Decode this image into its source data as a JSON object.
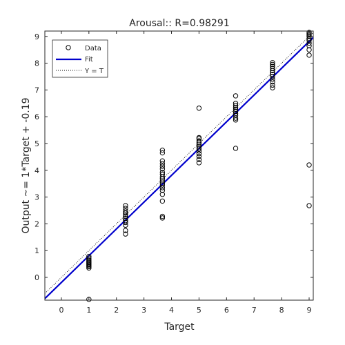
{
  "chart_data": {
    "type": "scatter",
    "title": "Arousal:: R=0.98291",
    "xlabel": "Target",
    "ylabel": "Output ~= 1*Target + -0.19",
    "xlim": [
      -0.6,
      9.15
    ],
    "ylim": [
      -0.85,
      9.2
    ],
    "xticks": [
      0,
      1,
      2,
      3,
      4,
      5,
      6,
      7,
      8,
      9
    ],
    "yticks": [
      0,
      1,
      2,
      3,
      4,
      5,
      6,
      7,
      8,
      9
    ],
    "grid": false,
    "legend_position": "top-left",
    "series": [
      {
        "name": "Data",
        "marker": "circle",
        "color": "#000000",
        "points": [
          [
            1,
            0.35
          ],
          [
            1,
            0.4
          ],
          [
            1,
            0.44
          ],
          [
            1,
            0.48
          ],
          [
            1,
            0.52
          ],
          [
            1,
            0.56
          ],
          [
            1,
            0.6
          ],
          [
            1,
            0.65
          ],
          [
            1,
            0.72
          ],
          [
            1,
            0.78
          ],
          [
            1,
            -0.82
          ],
          [
            2.33,
            1.62
          ],
          [
            2.33,
            1.75
          ],
          [
            2.33,
            1.95
          ],
          [
            2.33,
            2.05
          ],
          [
            2.33,
            2.12
          ],
          [
            2.33,
            2.2
          ],
          [
            2.33,
            2.28
          ],
          [
            2.33,
            2.33
          ],
          [
            2.33,
            2.4
          ],
          [
            2.33,
            2.48
          ],
          [
            2.33,
            2.58
          ],
          [
            2.33,
            2.68
          ],
          [
            3.67,
            2.22
          ],
          [
            3.67,
            2.28
          ],
          [
            3.67,
            2.85
          ],
          [
            3.67,
            3.1
          ],
          [
            3.67,
            3.25
          ],
          [
            3.67,
            3.35
          ],
          [
            3.67,
            3.45
          ],
          [
            3.67,
            3.52
          ],
          [
            3.67,
            3.6
          ],
          [
            3.67,
            3.68
          ],
          [
            3.67,
            3.75
          ],
          [
            3.67,
            3.85
          ],
          [
            3.67,
            3.92
          ],
          [
            3.67,
            4.05
          ],
          [
            3.67,
            4.15
          ],
          [
            3.67,
            4.25
          ],
          [
            3.67,
            4.35
          ],
          [
            3.67,
            4.65
          ],
          [
            3.67,
            4.75
          ],
          [
            5,
            4.28
          ],
          [
            5,
            4.4
          ],
          [
            5,
            4.52
          ],
          [
            5,
            4.62
          ],
          [
            5,
            4.72
          ],
          [
            5,
            4.8
          ],
          [
            5,
            4.88
          ],
          [
            5,
            4.95
          ],
          [
            5,
            5.02
          ],
          [
            5,
            5.1
          ],
          [
            5,
            5.18
          ],
          [
            5,
            5.22
          ],
          [
            5,
            6.32
          ],
          [
            6.33,
            4.82
          ],
          [
            6.33,
            5.88
          ],
          [
            6.33,
            5.95
          ],
          [
            6.33,
            6.05
          ],
          [
            6.33,
            6.12
          ],
          [
            6.33,
            6.2
          ],
          [
            6.33,
            6.28
          ],
          [
            6.33,
            6.35
          ],
          [
            6.33,
            6.42
          ],
          [
            6.33,
            6.5
          ],
          [
            6.33,
            6.78
          ],
          [
            7.67,
            7.08
          ],
          [
            7.67,
            7.18
          ],
          [
            7.67,
            7.3
          ],
          [
            7.67,
            7.4
          ],
          [
            7.67,
            7.5
          ],
          [
            7.67,
            7.58
          ],
          [
            7.67,
            7.65
          ],
          [
            7.67,
            7.72
          ],
          [
            7.67,
            7.8
          ],
          [
            7.67,
            7.88
          ],
          [
            7.67,
            7.95
          ],
          [
            7.67,
            8.02
          ],
          [
            9,
            2.68
          ],
          [
            9,
            4.2
          ],
          [
            9,
            8.3
          ],
          [
            9,
            8.5
          ],
          [
            9,
            8.65
          ],
          [
            9,
            8.75
          ],
          [
            9,
            8.85
          ],
          [
            9,
            8.92
          ],
          [
            9,
            9.0
          ],
          [
            9,
            9.05
          ],
          [
            9,
            9.1
          ],
          [
            9,
            9.15
          ]
        ]
      },
      {
        "name": "Fit",
        "type": "line",
        "color": "#0000cc",
        "slope": 1,
        "intercept": -0.19
      },
      {
        "name": "Y = T",
        "type": "line",
        "style": "dotted",
        "color": "#000000",
        "slope": 1,
        "intercept": 0
      }
    ]
  }
}
